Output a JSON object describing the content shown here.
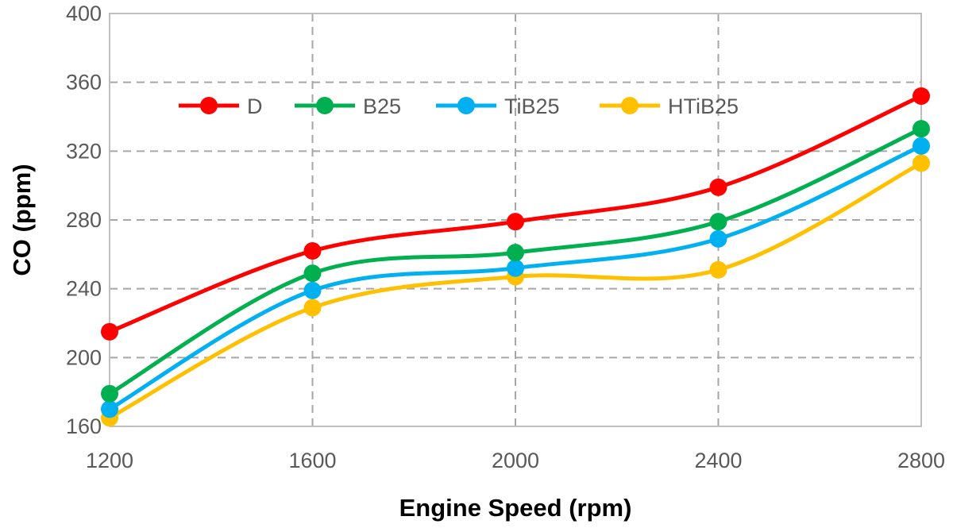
{
  "chart_data": {
    "type": "line",
    "xlabel": "Engine Speed (rpm)",
    "ylabel": "CO (ppm)",
    "x": [
      1200,
      1600,
      2000,
      2400,
      2800
    ],
    "x_tick_labels": [
      "1200",
      "1600",
      "2000",
      "2400",
      "2800"
    ],
    "y_tick_labels": [
      "160",
      "200",
      "240",
      "280",
      "320",
      "360",
      "400"
    ],
    "xlim": [
      1200,
      2800
    ],
    "ylim": [
      160,
      400
    ],
    "y_ticks": [
      160,
      200,
      240,
      280,
      320,
      360,
      400
    ],
    "grid": "dashed",
    "legend_position": "top-left, inside plot",
    "smooth_lines": true,
    "series": [
      {
        "name": "D",
        "color": "#ff0000",
        "values": [
          215,
          262,
          279,
          299,
          352
        ]
      },
      {
        "name": "B25",
        "color": "#00b050",
        "values": [
          179,
          249,
          261,
          279,
          333
        ]
      },
      {
        "name": "TiB25",
        "color": "#00b0f0",
        "values": [
          170,
          239,
          252,
          269,
          323
        ]
      },
      {
        "name": "HTiB25",
        "color": "#ffc000",
        "values": [
          165,
          229,
          247,
          251,
          313
        ]
      }
    ]
  }
}
